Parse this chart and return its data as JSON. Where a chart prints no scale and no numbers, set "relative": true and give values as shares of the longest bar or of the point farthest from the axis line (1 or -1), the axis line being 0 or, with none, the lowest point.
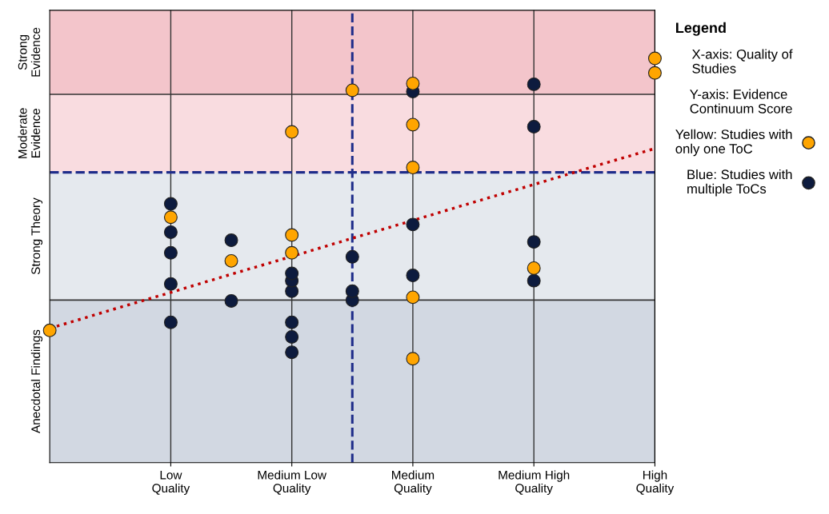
{
  "chart_data": {
    "type": "scatter",
    "relative": true,
    "legend_title": "Legend",
    "xlabel": "X-axis: Quality of\nStudies",
    "ylabel": "Y-axis: Evidence\nContinuum Score",
    "categories": [
      null,
      null,
      "Low\nQuality",
      null,
      "Medium Low\nQuality",
      null,
      "Medium\nQuality",
      null,
      "Medium High\nQuality",
      null,
      "High\nQuality"
    ],
    "grid": "x",
    "legend": "right",
    "marker": "circle",
    "bands": [
      {
        "axis": "y",
        "from": 0,
        "to": 0.402,
        "label": "Anecdotal Findings",
        "color": "#c7cedb"
      },
      {
        "axis": "y",
        "from": 0.402,
        "to": 0.718,
        "label": "Strong Theory",
        "color": "#dfe3ea"
      },
      {
        "axis": "y",
        "from": 0.718,
        "to": 0.911,
        "label": "Moderate\nEvidence",
        "color": "#f7d3d8"
      },
      {
        "axis": "y",
        "from": 0.911,
        "to": 1.119,
        "label": "Strong\nEvidence",
        "color": "#f0b6be"
      }
    ],
    "ref_lines": [
      {
        "axis": "y",
        "value": 0.911,
        "color": "#333333",
        "line_style": "solid"
      },
      {
        "axis": "y",
        "value": 0.718,
        "color": "#1f2d8a",
        "line_style": "dashed"
      },
      {
        "axis": "y",
        "value": 0.402,
        "color": "#333333",
        "line_style": "solid"
      }
    ],
    "series": [
      {
        "name": "Yellow: Studies with\nonly one ToC",
        "color": "#ffa500",
        "values": [
          0.327,
          null,
          0.607,
          0.499,
          0.818,
          0.921,
          0.938,
          null,
          0.481,
          null,
          1
        ]
      },
      {
        "color": "#ffa500",
        "values": [
          null,
          null,
          null,
          null,
          0.563,
          null,
          0.836,
          null,
          null,
          null,
          0.964
        ]
      },
      {
        "color": "#ffa500",
        "values": [
          null,
          null,
          null,
          null,
          0.519,
          null,
          0.73,
          null,
          null,
          null,
          null
        ]
      },
      {
        "color": "#ffa500",
        "values": [
          null,
          null,
          null,
          null,
          null,
          null,
          0.409,
          null,
          null,
          null,
          null
        ]
      },
      {
        "color": "#ffa500",
        "values": [
          null,
          null,
          null,
          null,
          null,
          null,
          0.257,
          null,
          null,
          null,
          null
        ]
      },
      {
        "name": "Blue: Studies with\nmultiple ToCs",
        "color": "#0d1b3e",
        "values": [
          null,
          null,
          0.64,
          0.55,
          null,
          0.509,
          0.918,
          null,
          0.936,
          null,
          null
        ]
      },
      {
        "color": "#0d1b3e",
        "values": [
          null,
          null,
          null,
          0.4,
          0.468,
          0.424,
          0.589,
          null,
          0.831,
          null,
          null
        ]
      },
      {
        "color": "#0d1b3e",
        "values": [
          null,
          null,
          0.57,
          null,
          0.45,
          0.402,
          0.463,
          null,
          0.546,
          null,
          null
        ]
      },
      {
        "color": "#0d1b3e",
        "values": [
          null,
          null,
          0.519,
          null,
          0.424,
          null,
          null,
          null,
          null,
          null,
          null
        ]
      },
      {
        "color": "#0d1b3e",
        "values": [
          null,
          null,
          0.442,
          null,
          0.347,
          null,
          null,
          null,
          0.45,
          null,
          null
        ]
      },
      {
        "color": "#0d1b3e",
        "values": [
          null,
          null,
          0.347,
          null,
          0.311,
          null,
          null,
          null,
          null,
          null,
          null
        ]
      },
      {
        "color": "#0d1b3e",
        "values": [
          null,
          null,
          null,
          null,
          0.273,
          null,
          null,
          null,
          null,
          null,
          null
        ]
      },
      {
        "type": "line",
        "color": "#c00000",
        "line_style": "dotted",
        "marker": "none",
        "values": [
          0.332,
          0.377,
          0.421,
          0.466,
          0.51,
          0.555,
          0.599,
          0.644,
          0.688,
          0.733,
          0.777
        ]
      }
    ]
  }
}
